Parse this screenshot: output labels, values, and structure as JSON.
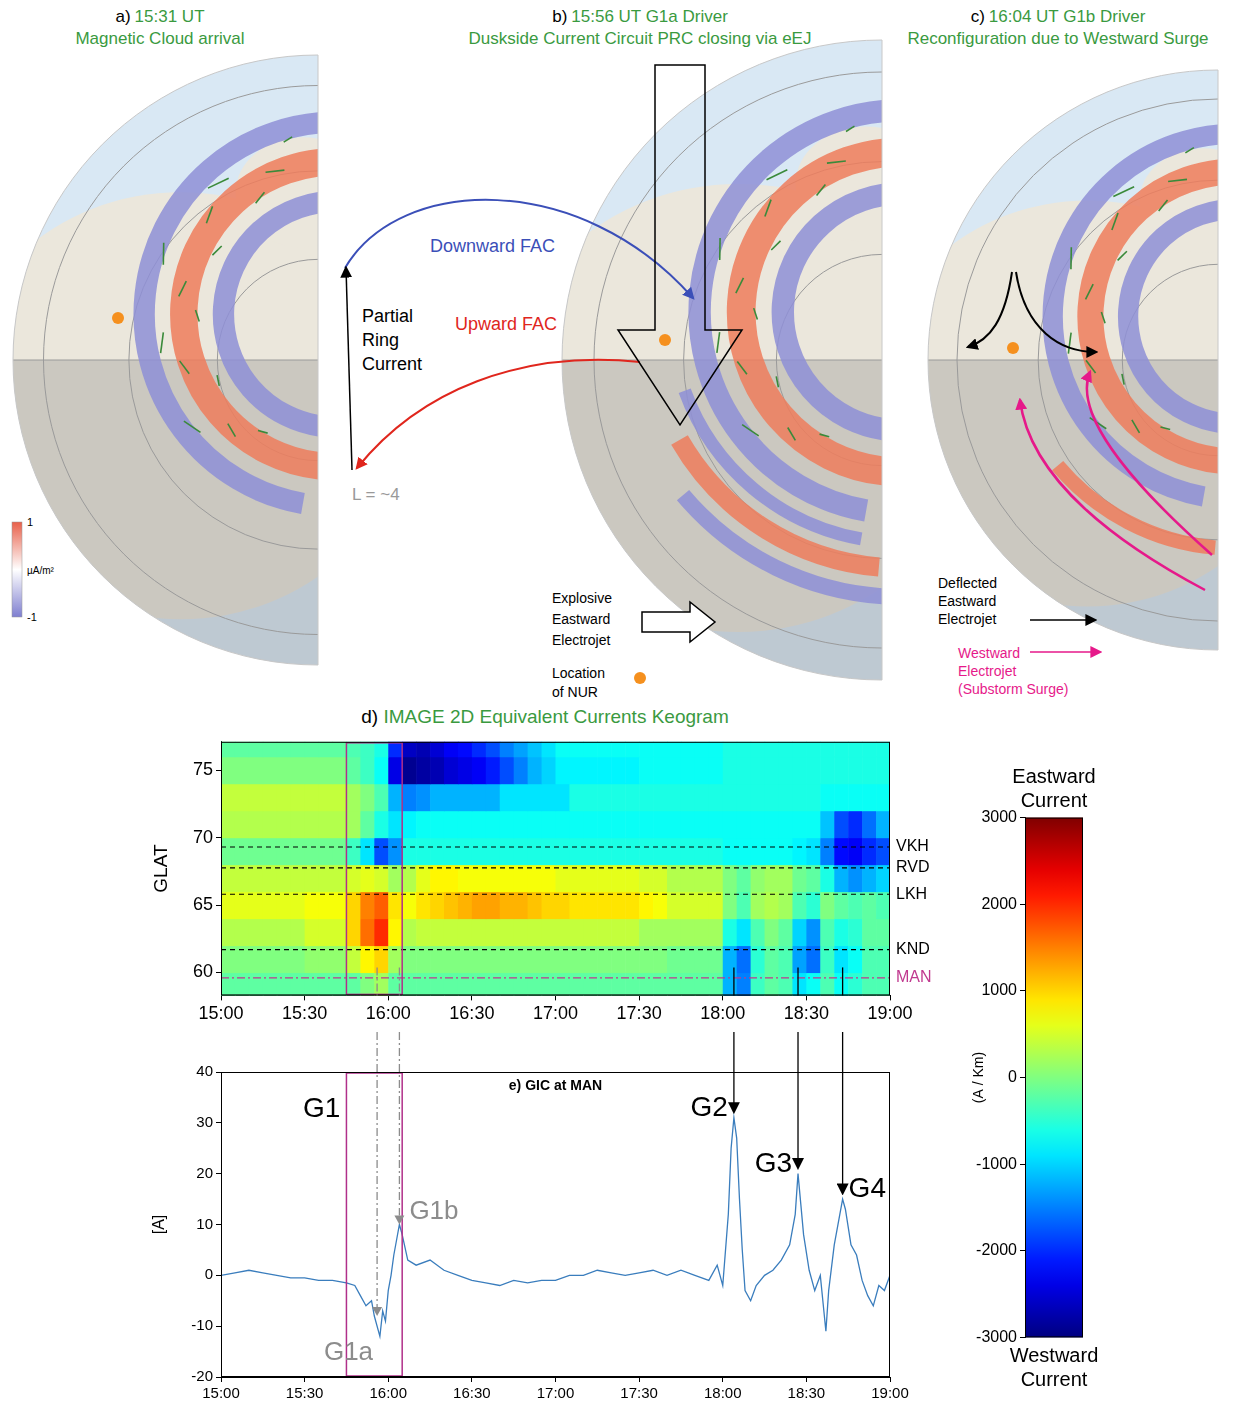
{
  "panels": [
    {
      "letter": "a)",
      "time": "15:31 UT",
      "title": "Magnetic Cloud arrival"
    },
    {
      "letter": "b)",
      "time": "15:56 UT G1a Driver",
      "title": "Duskside Current Circuit PRC closing via eEJ"
    },
    {
      "letter": "c)",
      "time": "16:04 UT G1b Driver",
      "title": "Reconfiguration due to Westward Surge"
    }
  ],
  "fac_colorbar": {
    "range": [
      -1,
      1
    ],
    "ticks": [
      -1,
      1
    ],
    "unit": "µA/m²"
  },
  "diagram_labels": {
    "downward_fac": "Downward FAC",
    "upward_fac": "Upward FAC",
    "partial_ring_current": "Partial Ring Current",
    "l_shell": "L = ~4",
    "explosive_eej": "Explosive Eastward Electrojet",
    "nur": "Location of NUR",
    "deflected_eej": "Deflected Eastward Electrojet",
    "westward_ej": "Westward Electrojet (Substorm Surge)"
  },
  "chart_data": [
    {
      "type": "heatmap",
      "letter": "d)",
      "title": "IMAGE 2D Equivalent Currents Keogram",
      "y_label": "GLAT",
      "grid": false,
      "xlim": [
        15,
        19
      ],
      "xticks": [
        {
          "value": 15,
          "label": "15:00"
        },
        {
          "value": 15.5,
          "label": "15:30"
        },
        {
          "value": 16,
          "label": "16:00"
        },
        {
          "value": 16.5,
          "label": "16:30"
        },
        {
          "value": 17,
          "label": "17:00"
        },
        {
          "value": 17.5,
          "label": "17:30"
        },
        {
          "value": 18,
          "label": "18:00"
        },
        {
          "value": 18.5,
          "label": "18:30"
        },
        {
          "value": 19,
          "label": "19:00"
        }
      ],
      "ylim": [
        58.3,
        77.1
      ],
      "yticks": [
        60,
        65,
        70,
        75
      ],
      "time_edges": [
        15,
        15.0833,
        15.1667,
        15.25,
        15.3333,
        15.4167,
        15.5,
        15.5833,
        15.6667,
        15.75,
        15.8333,
        15.9167,
        16,
        16.0833,
        16.1667,
        16.25,
        16.3333,
        16.4167,
        16.5,
        16.5833,
        16.6667,
        16.75,
        16.8333,
        16.9167,
        17,
        17.0833,
        17.1667,
        17.25,
        17.3333,
        17.4167,
        17.5,
        17.5833,
        17.6667,
        17.75,
        17.8333,
        17.9167,
        18,
        18.0833,
        18.1667,
        18.25,
        18.3333,
        18.4167,
        18.5,
        18.5833,
        18.6667,
        18.75,
        18.8333,
        18.9167,
        19
      ],
      "lat_edges": [
        58,
        60,
        62,
        64,
        66,
        68,
        70,
        72,
        74,
        76,
        78
      ],
      "cells": [
        [
          -200,
          -200,
          -200,
          -200,
          -200,
          -200,
          -200,
          -200,
          -200,
          -200,
          0,
          200,
          -200,
          -200,
          -200,
          -200,
          -200,
          -200,
          -200,
          -200,
          -200,
          -200,
          -200,
          -200,
          -200,
          -200,
          -200,
          -200,
          -200,
          -200,
          -200,
          -200,
          -200,
          -200,
          -200,
          -200,
          -1200,
          -1500,
          -400,
          -200,
          -300,
          -900,
          -700,
          -300,
          -700,
          -500,
          -300,
          -300
        ],
        [
          0,
          0,
          0,
          0,
          0,
          0,
          100,
          100,
          100,
          400,
          800,
          1000,
          200,
          0,
          0,
          0,
          0,
          0,
          0,
          0,
          0,
          0,
          0,
          0,
          0,
          0,
          0,
          0,
          0,
          0,
          0,
          0,
          -100,
          -100,
          -100,
          -100,
          -1200,
          -1600,
          -500,
          -200,
          -300,
          -1300,
          -1600,
          -400,
          -900,
          -700,
          -300,
          -300
        ],
        [
          300,
          300,
          300,
          300,
          300,
          300,
          500,
          500,
          500,
          1000,
          1600,
          2000,
          800,
          300,
          400,
          400,
          400,
          400,
          400,
          400,
          400,
          400,
          400,
          400,
          400,
          400,
          400,
          400,
          400,
          400,
          200,
          200,
          200,
          200,
          200,
          200,
          -600,
          -900,
          -300,
          0,
          -200,
          -1000,
          -1400,
          -300,
          -600,
          -500,
          -200,
          -200
        ],
        [
          600,
          600,
          600,
          600,
          600,
          600,
          700,
          700,
          700,
          1000,
          1500,
          1700,
          900,
          700,
          900,
          1000,
          1100,
          1200,
          1300,
          1300,
          1200,
          1200,
          1100,
          1000,
          1000,
          900,
          900,
          900,
          900,
          900,
          800,
          700,
          500,
          500,
          500,
          500,
          0,
          -300,
          200,
          300,
          200,
          -300,
          -500,
          0,
          -200,
          -300,
          -200,
          -300
        ],
        [
          400,
          400,
          400,
          400,
          400,
          400,
          400,
          400,
          400,
          500,
          600,
          500,
          200,
          300,
          600,
          800,
          800,
          700,
          700,
          700,
          700,
          700,
          700,
          700,
          600,
          600,
          600,
          600,
          600,
          600,
          500,
          500,
          300,
          300,
          300,
          300,
          0,
          -200,
          100,
          200,
          200,
          -100,
          -200,
          -600,
          -1200,
          -1400,
          -1200,
          -1000
        ],
        [
          -100,
          -100,
          -100,
          -100,
          -100,
          -100,
          -100,
          -100,
          -100,
          -400,
          -900,
          -1800,
          -1400,
          -600,
          -600,
          -600,
          -600,
          -600,
          -600,
          -600,
          -600,
          -600,
          -600,
          -600,
          -600,
          -600,
          -600,
          -600,
          -600,
          -600,
          -600,
          -600,
          -600,
          -600,
          -600,
          -600,
          -700,
          -700,
          -700,
          -700,
          -700,
          -800,
          -900,
          -1500,
          -2200,
          -2300,
          -2000,
          -1800
        ],
        [
          300,
          300,
          300,
          300,
          300,
          300,
          300,
          300,
          300,
          200,
          -200,
          -600,
          -900,
          -800,
          -700,
          -700,
          -700,
          -700,
          -700,
          -700,
          -700,
          -700,
          -700,
          -700,
          -700,
          -700,
          -700,
          -700,
          -700,
          -700,
          -700,
          -700,
          -700,
          -700,
          -700,
          -700,
          -700,
          -700,
          -700,
          -700,
          -700,
          -700,
          -700,
          -1100,
          -1800,
          -2000,
          -1600,
          -1200
        ],
        [
          400,
          400,
          400,
          400,
          400,
          400,
          400,
          400,
          400,
          200,
          0,
          -300,
          -1200,
          -1500,
          -1400,
          -1200,
          -1200,
          -1200,
          -1200,
          -1200,
          -900,
          -900,
          -900,
          -900,
          -900,
          -600,
          -600,
          -600,
          -600,
          -600,
          -600,
          -600,
          -600,
          -600,
          -600,
          -600,
          -600,
          -600,
          -600,
          -600,
          -600,
          -600,
          -600,
          -700,
          -700,
          -700,
          -700,
          -700
        ],
        [
          0,
          0,
          0,
          0,
          0,
          0,
          0,
          0,
          0,
          -200,
          -400,
          -700,
          -2400,
          -2900,
          -2800,
          -2700,
          -2500,
          -2400,
          -2300,
          -2100,
          -1800,
          -1500,
          -1200,
          -1000,
          -800,
          -800,
          -800,
          -800,
          -800,
          -800,
          -700,
          -700,
          -700,
          -700,
          -700,
          -700,
          -600,
          -600,
          -600,
          -600,
          -600,
          -600,
          -600,
          -600,
          -600,
          -600,
          -600,
          -600
        ],
        [
          -200,
          -200,
          -200,
          -200,
          -200,
          -200,
          -200,
          -200,
          -200,
          -300,
          -400,
          -600,
          -2000,
          -2600,
          -2700,
          -2500,
          -2300,
          -2200,
          -2000,
          -1800,
          -1500,
          -1300,
          -1100,
          -900,
          -700,
          -700,
          -700,
          -700,
          -700,
          -700,
          -700,
          -700,
          -700,
          -700,
          -700,
          -700,
          -600,
          -600,
          -600,
          -600,
          -600,
          -600,
          -600,
          -600,
          -600,
          -600,
          -600,
          -600
        ]
      ],
      "colorbar": {
        "range": [
          -3000,
          3000
        ],
        "ticks": [
          -3000,
          -2000,
          -1000,
          0,
          1000,
          2000,
          3000
        ],
        "label": "(A / Km)",
        "top_label": "Eastward Current",
        "bottom_label": "Westward Current"
      },
      "stations": [
        {
          "name": "VKH",
          "lat": 69.3,
          "color": "#000000",
          "line_style": "dashed"
        },
        {
          "name": "RVD",
          "lat": 67.75,
          "color": "#000000",
          "line_style": "dashed"
        },
        {
          "name": "LKH",
          "lat": 65.8,
          "color": "#000000",
          "line_style": "dashed"
        },
        {
          "name": "KND",
          "lat": 61.7,
          "color": "#000000",
          "line_style": "dashed"
        },
        {
          "name": "MAN",
          "lat": 59.6,
          "color": "#c0398f",
          "line_style": "dashdot"
        }
      ],
      "highlight": {
        "from": 15.75,
        "to": 16.0833,
        "color": "#b0308a"
      }
    },
    {
      "type": "line",
      "letter": "e)",
      "title": "GIC at MAN",
      "y_label": "[A]",
      "grid": false,
      "color": "#3a7dbd",
      "xlim": [
        15,
        19
      ],
      "xticks": [
        {
          "value": 15,
          "label": "15:00"
        },
        {
          "value": 15.5,
          "label": "15:30"
        },
        {
          "value": 16,
          "label": "16:00"
        },
        {
          "value": 16.5,
          "label": "16:30"
        },
        {
          "value": 17,
          "label": "17:00"
        },
        {
          "value": 17.5,
          "label": "17:30"
        },
        {
          "value": 18,
          "label": "18:00"
        },
        {
          "value": 18.5,
          "label": "18:30"
        },
        {
          "value": 19,
          "label": "19:00"
        }
      ],
      "ylim": [
        -20,
        40
      ],
      "yticks": [
        -20,
        -10,
        0,
        10,
        20,
        30,
        40
      ],
      "x": [
        15,
        15.0833,
        15.1667,
        15.25,
        15.3333,
        15.4167,
        15.5,
        15.5833,
        15.6667,
        15.75,
        15.8,
        15.8333,
        15.8667,
        15.9,
        15.9167,
        15.95,
        15.9667,
        15.9833,
        16,
        16.0167,
        16.0333,
        16.05,
        16.0667,
        16.0833,
        16.1167,
        16.1667,
        16.25,
        16.3333,
        16.4167,
        16.5,
        16.5833,
        16.6667,
        16.75,
        16.8333,
        16.9167,
        17,
        17.0833,
        17.1667,
        17.25,
        17.3333,
        17.4167,
        17.5,
        17.5833,
        17.6667,
        17.75,
        17.8333,
        17.9167,
        17.9667,
        18,
        18.0333,
        18.05,
        18.0667,
        18.0833,
        18.1,
        18.1167,
        18.1333,
        18.1667,
        18.2,
        18.25,
        18.3,
        18.35,
        18.4,
        18.4333,
        18.45,
        18.4667,
        18.4833,
        18.5167,
        18.55,
        18.5833,
        18.6167,
        18.6333,
        18.6667,
        18.7,
        18.7167,
        18.7333,
        18.7667,
        18.8,
        18.8333,
        18.8667,
        18.9,
        18.9333,
        18.9667,
        19
      ],
      "values": [
        0,
        0.5,
        1,
        0.5,
        0,
        -0.5,
        -0.5,
        -1,
        -1,
        -1.5,
        -2,
        -4,
        -6,
        -5,
        -8,
        -12,
        -7,
        -9,
        -3,
        0,
        4,
        7,
        10,
        8,
        3,
        2,
        3,
        1,
        0,
        -1,
        -1.5,
        -2,
        -1,
        -1.5,
        -1,
        -1,
        0,
        0,
        1,
        0.5,
        0,
        0.5,
        1,
        0,
        1,
        0,
        -1,
        2,
        -2,
        12,
        25,
        31,
        27,
        15,
        5,
        -3,
        -5,
        -2,
        0,
        1,
        3,
        6,
        12,
        20,
        14,
        8,
        1,
        -3,
        0,
        -11,
        -3,
        6,
        12,
        15,
        13,
        6,
        4,
        -1,
        -4,
        -6,
        -2,
        -3,
        0
      ],
      "highlight": {
        "label": "G1",
        "from": 15.75,
        "to": 16.0833,
        "color": "#b0308a"
      },
      "events": [
        {
          "label": "G1a",
          "time": 15.9333,
          "color": "#8c8c8c",
          "line_style": "dashdot"
        },
        {
          "label": "G1b",
          "time": 16.0667,
          "color": "#8c8c8c",
          "line_style": "dashdot"
        },
        {
          "label": "G2",
          "time": 18.0667,
          "color": "#000000",
          "line_style": "solid"
        },
        {
          "label": "G3",
          "time": 18.45,
          "color": "#000000",
          "line_style": "solid"
        },
        {
          "label": "G4",
          "time": 18.7167,
          "color": "#000000",
          "line_style": "solid"
        }
      ]
    }
  ]
}
